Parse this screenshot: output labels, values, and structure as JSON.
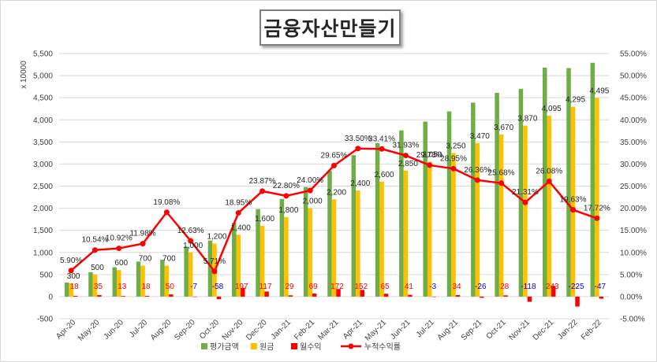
{
  "chart_data": {
    "type": "bar",
    "title": "금융자산만들기",
    "ylabel": "x 10000",
    "y_left_ticks": [
      "-500",
      "0",
      "500",
      "1,000",
      "1,500",
      "2,000",
      "2,500",
      "3,000",
      "3,500",
      "4,000",
      "4,500",
      "5,000",
      "5,500"
    ],
    "y_right_ticks": [
      "-5.00%",
      "0.00%",
      "5.00%",
      "10.00%",
      "15.00%",
      "20.00%",
      "25.00%",
      "30.00%",
      "35.00%",
      "40.00%",
      "45.00%",
      "50.00%",
      "55.00%"
    ],
    "ylim_left": [
      -500,
      5500
    ],
    "ylim_right": [
      -5,
      55
    ],
    "categories": [
      "Apr-20",
      "May-20",
      "Jun-20",
      "Jul-20",
      "Aug-20",
      "Sep-20",
      "Oct-20",
      "Nov-20",
      "Dec-20",
      "Jan-21",
      "Feb-21",
      "Mar-21",
      "Apr-21",
      "May-21",
      "Jun-21",
      "Jul-21",
      "Aug-21",
      "Sep-21",
      "Oct-21",
      "Nov-21",
      "Dec-21",
      "Jan-22",
      "Feb-22"
    ],
    "series": [
      {
        "name": "평가금액",
        "type": "bar",
        "color": "#70ad47",
        "values": [
          318,
          553,
          665,
          793,
          837,
          1130,
          1270,
          1670,
          1980,
          2210,
          2480,
          2850,
          3200,
          3470,
          3760,
          3960,
          4190,
          4390,
          4610,
          4700,
          5180,
          5170,
          5290
        ]
      },
      {
        "name": "원금",
        "type": "bar",
        "color": "#ffc000",
        "values": [
          300,
          500,
          600,
          700,
          700,
          1000,
          1200,
          1400,
          1600,
          1800,
          2000,
          2200,
          2400,
          2600,
          2850,
          3050,
          3250,
          3470,
          3670,
          3870,
          4095,
          4295,
          4495
        ],
        "labels": [
          "300",
          "500",
          "600",
          "700",
          "700",
          "1,000",
          "1,200",
          "1,400",
          "1,600",
          "1,800",
          "2,000",
          "2,200",
          "2,400",
          "2,600",
          "2,850",
          "3,050",
          "3,250",
          "3,470",
          "3,670",
          "3,870",
          "4,095",
          "4,295",
          "4,495"
        ]
      },
      {
        "name": "월수익",
        "type": "bar",
        "color": "#ff0000",
        "values": [
          18,
          35,
          13,
          18,
          50,
          -7,
          -58,
          197,
          117,
          29,
          69,
          172,
          152,
          65,
          41,
          -3,
          34,
          -26,
          28,
          -118,
          243,
          -225,
          -47
        ],
        "labels": [
          "18",
          "35",
          "13",
          "18",
          "50",
          "-7",
          "-58",
          "197",
          "117",
          "29",
          "69",
          "172",
          "152",
          "65",
          "41",
          "-3",
          "34",
          "-26",
          "28",
          "-118",
          "243",
          "-225",
          "-47"
        ]
      },
      {
        "name": "누적수익률",
        "type": "line",
        "color": "#ff0000",
        "values": [
          5.9,
          10.54,
          10.92,
          11.98,
          19.08,
          12.63,
          5.71,
          18.95,
          23.87,
          22.8,
          24.0,
          29.65,
          33.5,
          33.41,
          31.93,
          29.73,
          28.95,
          26.36,
          25.68,
          21.31,
          26.08,
          19.63,
          17.72
        ],
        "labels": [
          "5.90%",
          "10.54%",
          "10.92%",
          "11.98%",
          "19.08%",
          "12.63%",
          "5.71%",
          "18.95%",
          "23.87%",
          "22.80%",
          "24.00%",
          "29.65%",
          "33.50%",
          "33.41%",
          "31.93%",
          "29.73%",
          "28.95%",
          "26.36%",
          "25.68%",
          "21.31%",
          "26.08%",
          "19.63%",
          "17.72%"
        ]
      }
    ],
    "legend_position": "bottom",
    "colors": {
      "positive_label": "#ff0000",
      "negative_label": "#0000ff",
      "grid": "#d9d9d9",
      "axis_text": "#404040"
    }
  }
}
